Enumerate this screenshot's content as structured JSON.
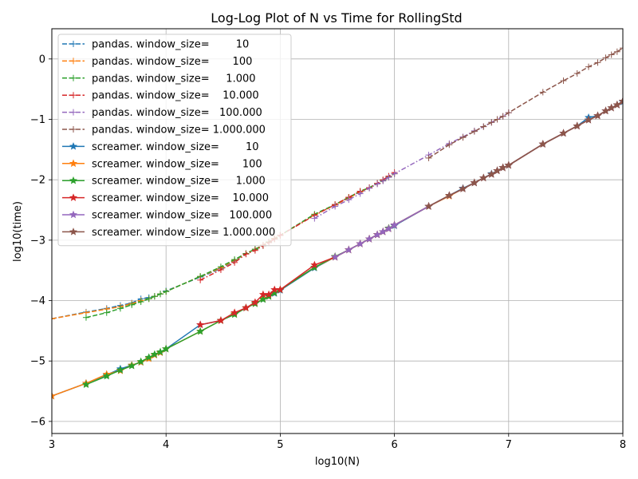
{
  "chart_data": {
    "type": "line",
    "title": "Log-Log Plot of N vs Time for RollingStd",
    "xlabel": "log10(N)",
    "ylabel": "log10(time)",
    "xlim": [
      3,
      8
    ],
    "ylim": [
      -6.2,
      0.5
    ],
    "x_ticks": [
      3,
      4,
      5,
      6,
      7,
      8
    ],
    "y_ticks": [
      -6,
      -5,
      -4,
      -3,
      -2,
      -1,
      0
    ],
    "x_tick_labels": [
      "3",
      "4",
      "5",
      "6",
      "7",
      "8"
    ],
    "y_tick_labels": [
      "−6",
      "−5",
      "−4",
      "−3",
      "−2",
      "−1",
      "0"
    ],
    "grid": true,
    "legend_position": "top-left",
    "series": [
      {
        "name": "pandas. window_size=        10",
        "color": "#1f77b4",
        "linestyle": "dashed",
        "marker": "plus",
        "x": [
          3.0,
          3.3,
          3.48,
          3.6,
          3.7,
          3.78,
          3.85,
          3.9,
          3.95,
          4.0,
          4.3,
          4.48,
          4.6,
          4.7,
          4.78,
          4.85,
          4.9,
          4.95,
          5.0
        ],
        "y": [
          -4.3,
          -4.19,
          -4.13,
          -4.08,
          -4.04,
          -3.97,
          -3.95,
          -3.93,
          -3.89,
          -3.84,
          -3.61,
          -3.47,
          -3.34,
          -3.22,
          -3.15,
          -3.08,
          -3.03,
          -2.97,
          -2.92
        ]
      },
      {
        "name": "pandas. window_size=       100",
        "color": "#ff7f0e",
        "linestyle": "dashed",
        "marker": "plus",
        "x": [
          3.0,
          3.3,
          3.48,
          3.6,
          3.7,
          3.78,
          3.85,
          3.9,
          3.95,
          4.0,
          4.3,
          4.48,
          4.6,
          4.7,
          4.78,
          4.85,
          4.9,
          4.95,
          5.0,
          5.3,
          5.48,
          5.6,
          5.7,
          5.78,
          5.85,
          5.9,
          5.95,
          6.0
        ],
        "y": [
          -4.3,
          -4.2,
          -4.14,
          -4.1,
          -4.05,
          -4.0,
          -3.97,
          -3.93,
          -3.89,
          -3.85,
          -3.6,
          -3.46,
          -3.33,
          -3.22,
          -3.15,
          -3.08,
          -3.03,
          -2.97,
          -2.92,
          -2.58,
          -2.42,
          -2.3,
          -2.2,
          -2.13,
          -2.06,
          -2.01,
          -1.95,
          -1.9
        ]
      },
      {
        "name": "pandas. window_size=     1.000",
        "color": "#2ca02c",
        "linestyle": "dashed",
        "marker": "plus",
        "x": [
          3.3,
          3.48,
          3.6,
          3.7,
          3.78,
          3.85,
          3.9,
          3.95,
          4.0,
          4.3,
          4.48,
          4.6,
          4.7,
          4.78,
          4.85,
          4.9,
          4.95,
          5.0,
          5.3,
          5.48,
          5.6,
          5.7,
          5.78,
          5.85,
          5.9,
          5.95,
          6.0
        ],
        "y": [
          -4.28,
          -4.2,
          -4.13,
          -4.07,
          -4.02,
          -3.97,
          -3.93,
          -3.89,
          -3.85,
          -3.6,
          -3.44,
          -3.32,
          -3.22,
          -3.15,
          -3.09,
          -3.03,
          -2.98,
          -2.92,
          -2.57,
          -2.41,
          -2.29,
          -2.19,
          -2.13,
          -2.06,
          -2.01,
          -1.95,
          -1.9
        ]
      },
      {
        "name": "pandas. window_size=    10.000",
        "color": "#d62728",
        "linestyle": "dashed",
        "marker": "plus",
        "x": [
          4.3,
          4.48,
          4.6,
          4.7,
          4.78,
          4.85,
          4.9,
          4.95,
          5.0,
          5.3,
          5.48,
          5.6,
          5.7,
          5.78,
          5.85,
          5.9,
          5.95,
          6.0
        ],
        "y": [
          -3.66,
          -3.49,
          -3.37,
          -3.23,
          -3.17,
          -3.09,
          -3.04,
          -2.98,
          -2.92,
          -2.59,
          -2.41,
          -2.29,
          -2.19,
          -2.13,
          -2.06,
          -2.0,
          -1.94,
          -1.88
        ]
      },
      {
        "name": "pandas. window_size=   100.000",
        "color": "#9467bd",
        "linestyle": "dashed",
        "marker": "plus",
        "x": [
          5.3,
          5.48,
          5.6,
          5.7,
          5.78,
          5.85,
          5.9,
          5.95,
          6.0,
          6.3,
          6.48,
          6.6,
          6.7,
          6.78,
          6.85,
          6.9,
          6.95,
          7.0
        ],
        "y": [
          -2.64,
          -2.44,
          -2.33,
          -2.23,
          -2.14,
          -2.07,
          -2.02,
          -1.96,
          -1.9,
          -1.59,
          -1.4,
          -1.29,
          -1.19,
          -1.12,
          -1.05,
          -1.0,
          -0.95,
          -0.89
        ]
      },
      {
        "name": "pandas. window_size= 1.000.000",
        "color": "#8c564b",
        "linestyle": "dashed",
        "marker": "plus",
        "x": [
          6.3,
          6.48,
          6.6,
          6.7,
          6.78,
          6.85,
          6.9,
          6.95,
          7.0,
          7.3,
          7.48,
          7.6,
          7.7,
          7.78,
          7.85,
          7.9,
          7.95,
          8.0
        ],
        "y": [
          -1.64,
          -1.42,
          -1.3,
          -1.2,
          -1.12,
          -1.05,
          -1.0,
          -0.95,
          -0.89,
          -0.55,
          -0.36,
          -0.24,
          -0.13,
          -0.06,
          0.02,
          0.07,
          0.12,
          0.18
        ]
      },
      {
        "name": "screamer. window_size=        10",
        "color": "#1f77b4",
        "linestyle": "solid",
        "marker": "star",
        "x": [
          3.0,
          3.3,
          3.48,
          3.6,
          3.7,
          3.78,
          3.85,
          3.9,
          3.95,
          4.0,
          4.3,
          4.48,
          4.6,
          4.7,
          4.78,
          4.85,
          4.9,
          4.95,
          5.0,
          5.3,
          5.48,
          5.6,
          5.7,
          5.78,
          5.85,
          5.9,
          5.95,
          6.0,
          6.3,
          6.48,
          6.6,
          6.7,
          6.78,
          6.85,
          6.9,
          6.95,
          7.0,
          7.3,
          7.48,
          7.6,
          7.7,
          7.78,
          7.85,
          7.9,
          7.95,
          8.0
        ],
        "y": [
          -5.58,
          -5.37,
          -5.23,
          -5.13,
          -5.07,
          -5.02,
          -4.95,
          -4.9,
          -4.86,
          -4.8,
          -4.4,
          -4.33,
          -4.22,
          -4.12,
          -4.05,
          -3.98,
          -3.93,
          -3.88,
          -3.83,
          -3.46,
          -3.28,
          -3.16,
          -3.06,
          -2.98,
          -2.91,
          -2.86,
          -2.81,
          -2.76,
          -2.44,
          -2.26,
          -2.14,
          -2.05,
          -1.97,
          -1.9,
          -1.85,
          -1.8,
          -1.76,
          -1.41,
          -1.23,
          -1.11,
          -0.97,
          -0.94,
          -0.86,
          -0.81,
          -0.76,
          -0.71
        ]
      },
      {
        "name": "screamer. window_size=       100",
        "color": "#ff7f0e",
        "linestyle": "solid",
        "marker": "star",
        "x": [
          3.0,
          3.3,
          3.48,
          3.6,
          3.7,
          3.78,
          3.85,
          3.9,
          3.95,
          4.0,
          4.3,
          4.48,
          4.6,
          4.7,
          4.78,
          4.85,
          4.9,
          4.95,
          5.0,
          5.3,
          5.48,
          5.6,
          5.7,
          5.78,
          5.85,
          5.9,
          5.95,
          6.0,
          6.3,
          6.48,
          6.6,
          6.7,
          6.78,
          6.85,
          6.9,
          6.95,
          7.0,
          7.3,
          7.48,
          7.6,
          7.7,
          7.78,
          7.85,
          7.9,
          7.95,
          8.0
        ],
        "y": [
          -5.58,
          -5.37,
          -5.22,
          -5.16,
          -5.07,
          -5.02,
          -4.96,
          -4.9,
          -4.86,
          -4.8,
          -4.51,
          -4.33,
          -4.22,
          -4.12,
          -4.05,
          -3.97,
          -3.93,
          -3.87,
          -3.82,
          -3.45,
          -3.28,
          -3.16,
          -3.06,
          -2.98,
          -2.91,
          -2.86,
          -2.81,
          -2.75,
          -2.44,
          -2.27,
          -2.15,
          -2.05,
          -1.97,
          -1.91,
          -1.85,
          -1.8,
          -1.76,
          -1.41,
          -1.23,
          -1.11,
          -1.01,
          -0.94,
          -0.86,
          -0.81,
          -0.76,
          -0.7
        ]
      },
      {
        "name": "screamer. window_size=     1.000",
        "color": "#2ca02c",
        "linestyle": "solid",
        "marker": "star",
        "x": [
          3.3,
          3.48,
          3.6,
          3.7,
          3.78,
          3.85,
          3.9,
          3.95,
          4.0,
          4.3,
          4.48,
          4.6,
          4.7,
          4.78,
          4.85,
          4.9,
          4.95,
          5.0,
          5.3,
          5.48,
          5.6,
          5.7,
          5.78,
          5.85,
          5.9,
          5.95,
          6.0,
          6.3,
          6.48,
          6.6,
          6.7,
          6.78,
          6.85,
          6.9,
          6.95,
          7.0,
          7.3,
          7.48,
          7.6,
          7.7,
          7.78,
          7.85,
          7.9,
          7.95,
          8.0
        ],
        "y": [
          -5.39,
          -5.25,
          -5.15,
          -5.08,
          -5.01,
          -4.94,
          -4.89,
          -4.85,
          -4.8,
          -4.51,
          -4.33,
          -4.23,
          -4.12,
          -4.05,
          -3.98,
          -3.93,
          -3.87,
          -3.82,
          -3.45,
          -3.27,
          -3.16,
          -3.06,
          -2.98,
          -2.91,
          -2.86,
          -2.8,
          -2.75,
          -2.44,
          -2.26,
          -2.15,
          -2.05,
          -1.97,
          -1.91,
          -1.85,
          -1.8,
          -1.76,
          -1.41,
          -1.23,
          -1.11,
          -1.01,
          -0.94,
          -0.86,
          -0.81,
          -0.76,
          -0.7
        ]
      },
      {
        "name": "screamer. window_size=    10.000",
        "color": "#d62728",
        "linestyle": "solid",
        "marker": "star",
        "x": [
          4.3,
          4.48,
          4.6,
          4.7,
          4.78,
          4.85,
          4.9,
          4.95,
          5.0,
          5.3,
          5.48,
          5.6,
          5.7,
          5.78,
          5.85,
          5.9,
          5.95,
          6.0,
          6.3,
          6.48,
          6.6,
          6.7,
          6.78,
          6.85,
          6.9,
          6.95,
          7.0,
          7.3,
          7.48,
          7.6,
          7.7,
          7.78,
          7.85,
          7.9,
          7.95,
          8.0
        ],
        "y": [
          -4.4,
          -4.33,
          -4.2,
          -4.12,
          -4.03,
          -3.9,
          -3.9,
          -3.82,
          -3.82,
          -3.41,
          -3.28,
          -3.16,
          -3.06,
          -2.98,
          -2.91,
          -2.86,
          -2.81,
          -2.75,
          -2.44,
          -2.26,
          -2.15,
          -2.05,
          -1.97,
          -1.91,
          -1.85,
          -1.8,
          -1.76,
          -1.41,
          -1.23,
          -1.11,
          -1.01,
          -0.94,
          -0.86,
          -0.81,
          -0.76,
          -0.7
        ]
      },
      {
        "name": "screamer. window_size=   100.000",
        "color": "#9467bd",
        "linestyle": "solid",
        "marker": "star",
        "x": [
          5.48,
          5.6,
          5.7,
          5.78,
          5.85,
          5.9,
          5.95,
          6.0,
          6.3,
          6.48,
          6.6,
          6.7,
          6.78,
          6.85,
          6.9,
          6.95,
          7.0,
          7.3,
          7.48,
          7.6,
          7.7,
          7.78,
          7.85,
          7.9,
          7.95,
          8.0
        ],
        "y": [
          -3.28,
          -3.16,
          -3.06,
          -2.98,
          -2.91,
          -2.86,
          -2.81,
          -2.75,
          -2.44,
          -2.26,
          -2.15,
          -2.05,
          -1.97,
          -1.91,
          -1.85,
          -1.8,
          -1.76,
          -1.41,
          -1.23,
          -1.11,
          -1.01,
          -0.94,
          -0.86,
          -0.81,
          -0.76,
          -0.7
        ]
      },
      {
        "name": "screamer. window_size= 1.000.000",
        "color": "#8c564b",
        "linestyle": "solid",
        "marker": "star",
        "x": [
          6.3,
          6.48,
          6.6,
          6.7,
          6.78,
          6.85,
          6.9,
          6.95,
          7.0,
          7.3,
          7.48,
          7.6,
          7.7,
          7.78,
          7.85,
          7.9,
          7.95,
          8.0
        ],
        "y": [
          -2.44,
          -2.26,
          -2.15,
          -2.05,
          -1.97,
          -1.91,
          -1.85,
          -1.8,
          -1.76,
          -1.41,
          -1.23,
          -1.11,
          -1.01,
          -0.94,
          -0.86,
          -0.81,
          -0.76,
          -0.7
        ]
      }
    ]
  }
}
